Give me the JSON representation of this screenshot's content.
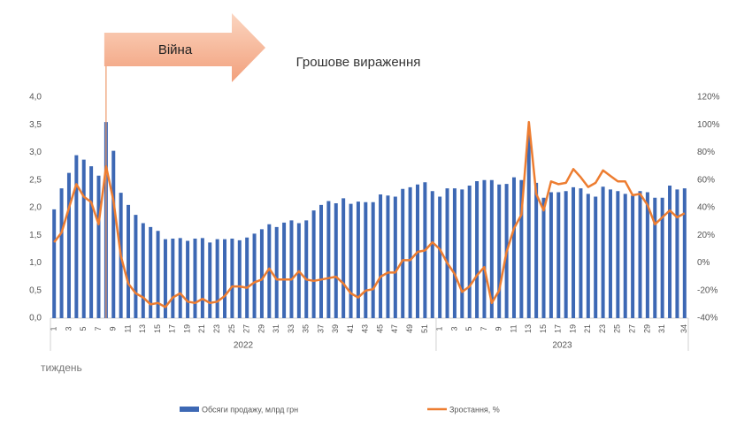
{
  "chart_data": {
    "type": "bar_line",
    "title": "Грошове вираження",
    "annotation": "Війна",
    "x_label": "тиждень",
    "category_groups": [
      {
        "label": "2022",
        "categories": [
          "1",
          null,
          "3",
          null,
          "5",
          null,
          "7",
          null,
          "9",
          null,
          "11",
          null,
          "13",
          null,
          "15",
          null,
          "17",
          null,
          "19",
          null,
          "21",
          null,
          "23",
          null,
          "25",
          null,
          "27",
          null,
          "29",
          null,
          "31",
          null,
          "33",
          null,
          "35",
          null,
          "37",
          null,
          "39",
          null,
          "41",
          null,
          "43",
          null,
          "45",
          null,
          "47",
          null,
          "49",
          null,
          "51",
          null
        ]
      },
      {
        "label": "2023",
        "categories": [
          "1",
          null,
          "3",
          null,
          "5",
          null,
          "7",
          null,
          "9",
          null,
          "11",
          null,
          "13",
          null,
          "15",
          null,
          "17",
          null,
          "19",
          null,
          "21",
          null,
          "23",
          null,
          "25",
          null,
          "27",
          null,
          "29",
          null,
          "31",
          null,
          null,
          "34"
        ]
      }
    ],
    "series": [
      {
        "name": "Обсяги продажу, млрд грн",
        "color": "#3d68b4",
        "kind": "bar",
        "values": [
          1.97,
          2.35,
          2.63,
          2.95,
          2.87,
          2.75,
          2.58,
          3.55,
          3.03,
          2.27,
          2.05,
          1.87,
          1.72,
          1.65,
          1.58,
          1.43,
          1.44,
          1.45,
          1.4,
          1.44,
          1.45,
          1.37,
          1.43,
          1.43,
          1.44,
          1.41,
          1.46,
          1.53,
          1.61,
          1.7,
          1.65,
          1.73,
          1.77,
          1.72,
          1.77,
          1.95,
          2.05,
          2.12,
          2.08,
          2.17,
          2.07,
          2.11,
          2.1,
          2.1,
          2.24,
          2.22,
          2.2,
          2.34,
          2.37,
          2.42,
          2.46,
          2.3,
          2.2,
          2.35,
          2.35,
          2.33,
          2.4,
          2.48,
          2.5,
          2.5,
          2.42,
          2.43,
          2.55,
          2.5,
          3.35,
          2.45,
          2.18,
          2.28,
          2.28,
          2.3,
          2.37,
          2.35,
          2.25,
          2.2,
          2.38,
          2.33,
          2.3,
          2.25,
          2.22,
          2.3,
          2.28,
          2.18,
          2.18,
          2.4,
          2.33,
          2.35
        ]
      },
      {
        "name": "Зростання, %",
        "color": "#ed7d31",
        "kind": "line",
        "axis": "y2",
        "values": [
          15,
          22,
          40,
          57,
          48,
          44,
          28,
          70,
          45,
          5,
          -15,
          -22,
          -25,
          -30,
          -29,
          -32,
          -25,
          -22,
          -28,
          -29,
          -26,
          -29,
          -28,
          -24,
          -17,
          -17,
          -18,
          -14,
          -12,
          -4,
          -12,
          -12,
          -12,
          -6,
          -12,
          -13,
          -12,
          -11,
          -10,
          -15,
          -22,
          -25,
          -20,
          -19,
          -10,
          -7,
          -7,
          2,
          2,
          8,
          9,
          15,
          10,
          0,
          -8,
          -21,
          -17,
          -9,
          -3,
          -29,
          -20,
          8,
          25,
          35,
          102,
          50,
          38,
          59,
          57,
          58,
          68,
          62,
          55,
          58,
          67,
          63,
          59,
          59,
          49,
          50,
          42,
          28,
          33,
          38,
          33,
          36
        ]
      }
    ],
    "ylim": [
      0,
      4
    ],
    "yticks": [
      {
        "value": 0,
        "label": "0,0"
      },
      {
        "value": 0.5,
        "label": "0,5"
      },
      {
        "value": 1,
        "label": "1,0"
      },
      {
        "value": 1.5,
        "label": "1,5"
      },
      {
        "value": 2,
        "label": "2,0"
      },
      {
        "value": 2.5,
        "label": "2,5"
      },
      {
        "value": 3,
        "label": "3,0"
      },
      {
        "value": 3.5,
        "label": "3,5"
      },
      {
        "value": 4,
        "label": "4,0"
      }
    ],
    "y2lim": [
      -40,
      120
    ],
    "y2ticks": [
      {
        "value": -40,
        "label": "-40%"
      },
      {
        "value": -20,
        "label": "-20%"
      },
      {
        "value": 0,
        "label": "0%"
      },
      {
        "value": 20,
        "label": "20%"
      },
      {
        "value": 40,
        "label": "40%"
      },
      {
        "value": 60,
        "label": "60%"
      },
      {
        "value": 80,
        "label": "80%"
      },
      {
        "value": 100,
        "label": "100%"
      },
      {
        "value": 120,
        "label": "120%"
      }
    ],
    "grid": false,
    "legend": "bottom"
  }
}
